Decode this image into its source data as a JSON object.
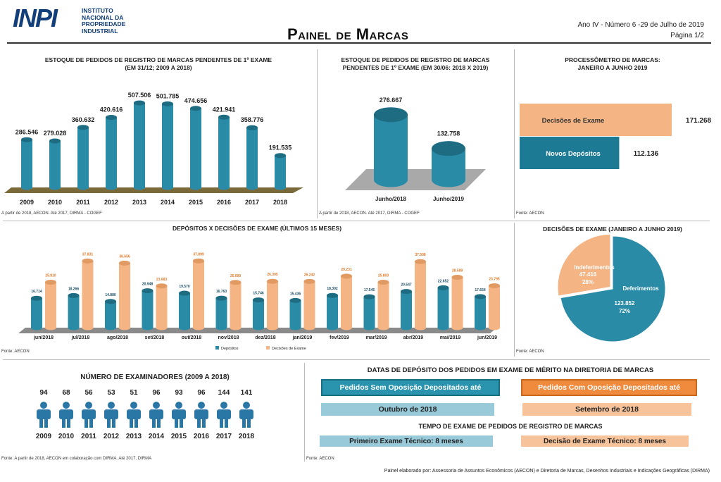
{
  "header": {
    "logo_mark": "INPI",
    "logo_text": "INSTITUTO NACIONAL DA PROPRIEDADE INDUSTRIAL",
    "title": "Painel de Marcas",
    "issue": "Ano IV - Número 6 -29 de Julho de 2019",
    "page": "Página 1/2"
  },
  "panel1": {
    "title_line1": "ESTOQUE DE PEDIDOS DE REGISTRO DE MARCAS PENDENTES DE 1º EXAME",
    "title_line2": "(EM 31/12; 2009 A 2018)",
    "source": "A partir de 2018, AECON. Até 2017, DIRMA - COGEF"
  },
  "panel2": {
    "title_line1": "ESTOQUE DE PEDIDOS DE REGISTRO DE MARCAS",
    "title_line2": "PENDENTES DE 1º EXAME (EM 30/06: 2018 X 2019)",
    "source": "A partir de 2018, AECON. Até 2017, DIRMA - COGEF"
  },
  "panel3": {
    "title_line1": "PROCESSÔMETRO DE MARCAS:",
    "title_line2": "JANEIRO A JUNHO 2019",
    "source": "Fonte: AECON"
  },
  "panel4": {
    "title": "DEPÓSITOS X DECISÕES DE EXAME (ÚLTIMOS 15 MESES)",
    "source": "Fonte: AECON"
  },
  "panel5": {
    "title": "DECISÕES DE EXAME (JANEIRO A JUNHO 2019)",
    "source": "Fonte: AECON"
  },
  "panel6": {
    "title": "NÚMERO DE EXAMINADORES (2009 A 2018)",
    "source": "Fonte: A partir de 2018, AECON em colaboração com DIRMA. Até 2017, DIRMA",
    "values": [
      "94",
      "68",
      "56",
      "53",
      "51",
      "96",
      "93",
      "96",
      "144",
      "141"
    ],
    "years": [
      "2009",
      "2010",
      "2011",
      "2012",
      "2013",
      "2014",
      "2015",
      "2016",
      "2017",
      "2018"
    ]
  },
  "panel7": {
    "title": "DATAS DE DEPÓSITO DOS PEDIDOS EM EXAME DE MÉRITO NA DIRETORIA DE MARCAS",
    "sem_label": "Pedidos Sem Oposição Depositados até",
    "com_label": "Pedidos Com Oposição Depositados até",
    "sem_value": "Outubro de 2018",
    "com_value": "Setembro de 2018",
    "tempo_title": "TEMPO  DE EXAME DE PEDIDOS DE REGISTRO  DE MARCAS",
    "primeiro": "Primeiro Exame Técnico: 8 meses",
    "decisao": "Decisão de Exame Técnico: 8 meses",
    "source": "Fonte: AECON"
  },
  "footer": "Painel elaborado por: Assessoria de Assuntos Econômicos (AECON) e Diretoria de Marcas, Desenhos Industriais e Indicações Geográficas (DIRMA)",
  "colors": {
    "teal": "#2a8ba6",
    "orange": "#f5b483",
    "navy": "#123e7a"
  },
  "chart_data": [
    {
      "type": "bar",
      "categories": [
        "2009",
        "2010",
        "2011",
        "2012",
        "2013",
        "2014",
        "2015",
        "2016",
        "2017",
        "2018"
      ],
      "values": [
        286546,
        279028,
        360632,
        420616,
        507506,
        501785,
        474656,
        421941,
        358776,
        191535
      ],
      "labels": [
        "286.546",
        "279.028",
        "360.632",
        "420.616",
        "507.506",
        "501.785",
        "474.656",
        "421.941",
        "358.776",
        "191.535"
      ]
    },
    {
      "type": "bar",
      "categories": [
        "Junho/2018",
        "Junho/2019"
      ],
      "values": [
        276667,
        132758
      ],
      "labels": [
        "276.667",
        "132.758"
      ]
    },
    {
      "type": "bar",
      "orientation": "horizontal",
      "categories": [
        "Decisões de Exame",
        "Novos Depósitos"
      ],
      "values": [
        171268,
        112136
      ],
      "labels": [
        "171.268",
        "112.136"
      ]
    },
    {
      "type": "bar",
      "categories": [
        "jun/2018",
        "jul/2018",
        "ago/2018",
        "set/2018",
        "out/2018",
        "nov/2018",
        "dez/2018",
        "jan/2019",
        "fev/2019",
        "mar/2019",
        "abr/2019",
        "mai/2019",
        "jun/2019"
      ],
      "series": [
        {
          "name": "Depósitos",
          "values": [
            16714,
            18266,
            14880,
            20948,
            19570,
            16763,
            15746,
            15436,
            18302,
            17545,
            20547,
            22652,
            17654
          ],
          "labels": [
            "16.714",
            "18.266",
            "14.880",
            "20.948",
            "19.570",
            "16.763",
            "15.746",
            "15.436",
            "18.302",
            "17.545",
            "20.547",
            "22.652",
            "17.654"
          ]
        },
        {
          "name": "Decisões de Exame",
          "values": [
            25810,
            37831,
            36656,
            23683,
            37899,
            25690,
            26305,
            26242,
            29231,
            25803,
            37508,
            28589,
            23795
          ],
          "labels": [
            "25.810",
            "37.831",
            "36.656",
            "23.683",
            "37.899",
            "25.690",
            "26.305",
            "26.242",
            "29.231",
            "25.803",
            "37.508",
            "28.589",
            "23.795"
          ]
        }
      ]
    },
    {
      "type": "pie",
      "categories": [
        "Deferimentos",
        "Indeferimentos"
      ],
      "values": [
        123852,
        47416
      ],
      "labels": [
        "123.852",
        "47.416"
      ],
      "percents": [
        "72%",
        "28%"
      ]
    }
  ]
}
